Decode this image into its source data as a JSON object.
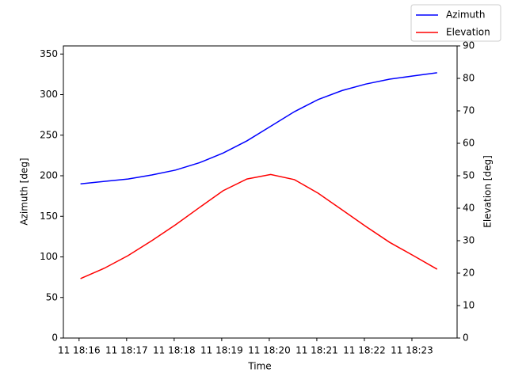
{
  "chart_data": {
    "type": "line",
    "xlabel": "Time",
    "ylabel": "Azimuth [deg]",
    "y2label": "Elevation [deg]",
    "x": [
      16.03,
      16.53,
      17.03,
      17.53,
      18.03,
      18.53,
      19.03,
      19.53,
      20.03,
      20.53,
      21.03,
      21.53,
      22.03,
      22.53,
      23.03,
      23.53
    ],
    "xlim": [
      15.67,
      23.95
    ],
    "xticks": [
      {
        "value": 16,
        "label": "11 18:16"
      },
      {
        "value": 17,
        "label": "11 18:17"
      },
      {
        "value": 18,
        "label": "11 18:18"
      },
      {
        "value": 19,
        "label": "11 18:19"
      },
      {
        "value": 20,
        "label": "11 18:20"
      },
      {
        "value": 21,
        "label": "11 18:21"
      },
      {
        "value": 22,
        "label": "11 18:22"
      },
      {
        "value": 23,
        "label": "11 18:23"
      }
    ],
    "ylim": [
      0,
      360
    ],
    "yticks": [
      0,
      50,
      100,
      150,
      200,
      250,
      300,
      350
    ],
    "y2lim": [
      0,
      90
    ],
    "y2ticks": [
      0,
      10,
      20,
      30,
      40,
      50,
      60,
      70,
      80,
      90
    ],
    "legend": "upper right",
    "series": [
      {
        "name": "Azimuth",
        "color": "#0000ff",
        "values": [
          190,
          193,
          196,
          201,
          207,
          216,
          228,
          243,
          261,
          279,
          294,
          305,
          313,
          319,
          323,
          327
        ]
      },
      {
        "name": "Elevation",
        "color": "#ff0000",
        "axis": "y2",
        "values": [
          18.3,
          21.5,
          25.4,
          30,
          34.9,
          40.2,
          45.4,
          49,
          50.4,
          48.8,
          44.6,
          39.5,
          34.4,
          29.5,
          25.4,
          21.2
        ]
      }
    ]
  }
}
